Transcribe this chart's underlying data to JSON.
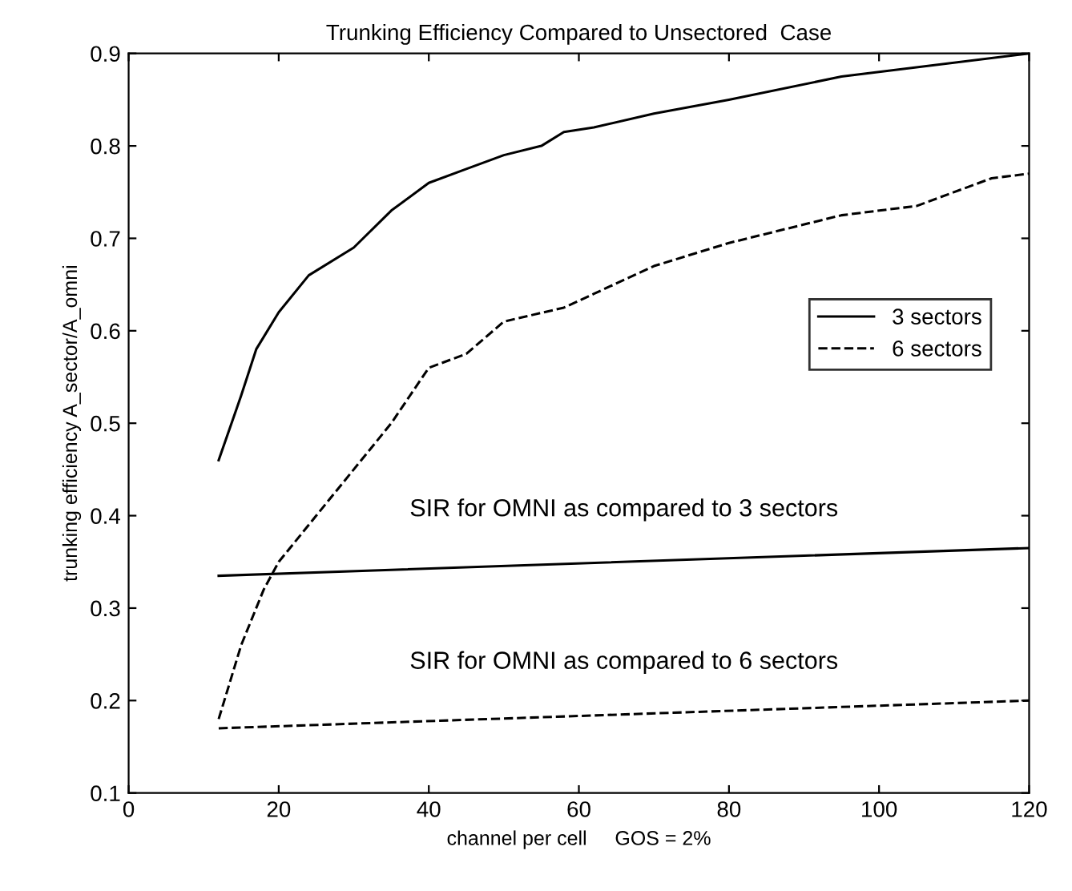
{
  "chart_data": {
    "type": "line",
    "title": "Trunking Efficiency Compared to Unsectored  Case",
    "xlabel": "channel per cell     GOS = 2%",
    "ylabel": "trunking efficiency A_sector/A_omni",
    "series": [
      {
        "name": "3 sectors",
        "color": "#000000",
        "line_style": "solid",
        "x": [
          12,
          15,
          17,
          20,
          24,
          30,
          35,
          40,
          45,
          50,
          55,
          58,
          62,
          70,
          80,
          95,
          120
        ],
        "values": [
          0.46,
          0.53,
          0.58,
          0.62,
          0.66,
          0.69,
          0.73,
          0.76,
          0.775,
          0.79,
          0.8,
          0.815,
          0.82,
          0.835,
          0.85,
          0.875,
          0.9
        ]
      },
      {
        "name": "6 sectors",
        "color": "#000000",
        "line_style": "dashed",
        "x": [
          12,
          15,
          18,
          20,
          25,
          30,
          35,
          40,
          45,
          50,
          58,
          62,
          70,
          80,
          95,
          105,
          115,
          120
        ],
        "values": [
          0.18,
          0.26,
          0.32,
          0.35,
          0.4,
          0.45,
          0.5,
          0.56,
          0.575,
          0.61,
          0.625,
          0.64,
          0.67,
          0.695,
          0.725,
          0.735,
          0.765,
          0.77
        ]
      },
      {
        "color": "#000000",
        "line_style": "solid",
        "x": [
          12,
          120
        ],
        "values": [
          0.335,
          0.365
        ]
      },
      {
        "color": "#000000",
        "line_style": "dashed",
        "x": [
          12,
          120
        ],
        "values": [
          0.17,
          0.2
        ]
      }
    ],
    "annotations": [
      "SIR for OMNI as compared to 3 sectors",
      "SIR for OMNI as compared to 6 sectors"
    ],
    "xlim": [
      0,
      120
    ],
    "ylim": [
      0.1,
      0.9
    ],
    "xticks": [
      0,
      20,
      40,
      60,
      80,
      100,
      120
    ],
    "yticks": [
      0.1,
      0.2,
      0.3,
      0.4,
      0.5,
      0.6,
      0.7,
      0.8,
      0.9
    ],
    "legend": "right",
    "grid": false
  }
}
